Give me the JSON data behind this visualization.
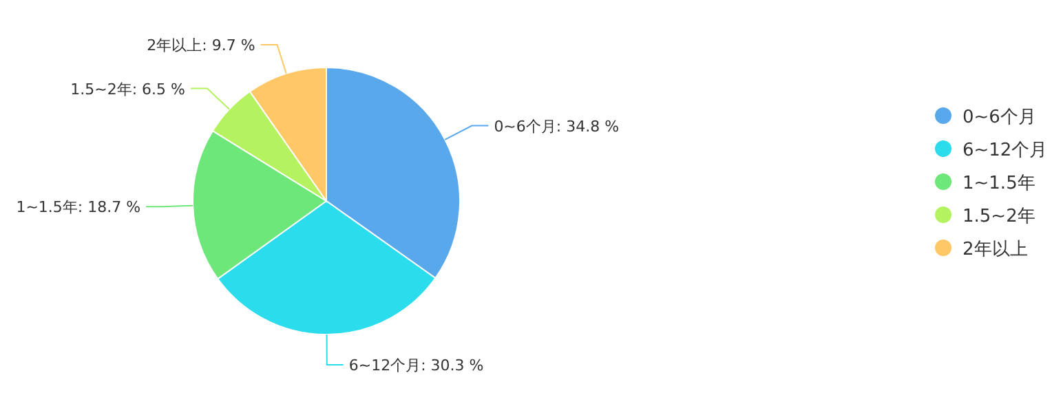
{
  "chart_data": {
    "type": "pie",
    "categories": [
      "0~6个月",
      "6~12个月",
      "1~1.5年",
      "1.5~2年",
      "2年以上"
    ],
    "values": [
      34.8,
      30.3,
      18.7,
      6.5,
      9.7
    ],
    "colors": [
      "#5aa8ec",
      "#2bdcec",
      "#6de67a",
      "#b5f25f",
      "#ffc766"
    ],
    "value_labels": [
      "0~6个月: 34.8 %",
      "6~12个月: 30.3 %",
      "1~1.5年: 18.7 %",
      "1.5~2年: 6.5 %",
      "2年以上: 9.7 %"
    ],
    "legend": "right"
  }
}
